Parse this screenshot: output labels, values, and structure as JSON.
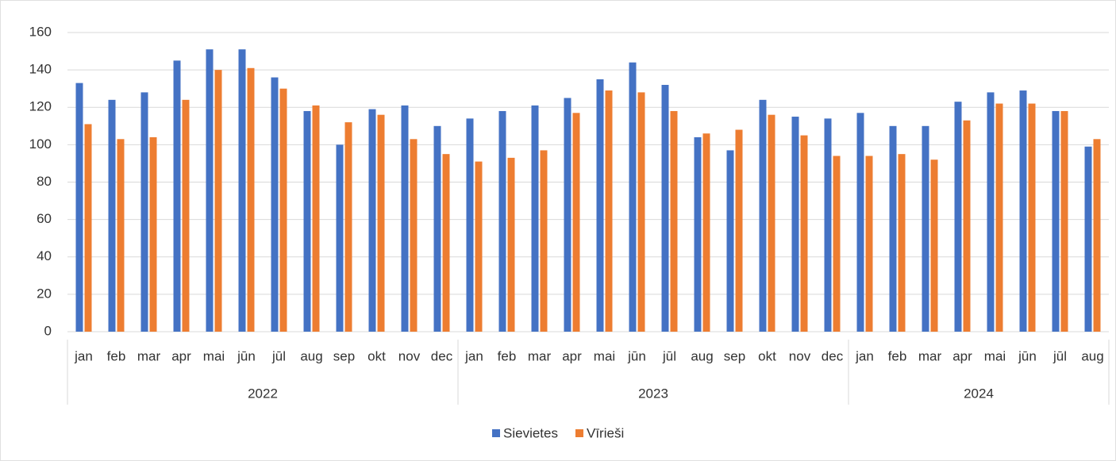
{
  "chart_data": {
    "type": "bar",
    "groups": [
      {
        "label": "2022",
        "categories": [
          "jan",
          "feb",
          "mar",
          "apr",
          "mai",
          "jūn",
          "jūl",
          "aug",
          "sep",
          "okt",
          "nov",
          "dec"
        ]
      },
      {
        "label": "2023",
        "categories": [
          "jan",
          "feb",
          "mar",
          "apr",
          "mai",
          "jūn",
          "jūl",
          "aug",
          "sep",
          "okt",
          "nov",
          "dec"
        ]
      },
      {
        "label": "2024",
        "categories": [
          "jan",
          "feb",
          "mar",
          "apr",
          "mai",
          "jūn",
          "jūl",
          "aug"
        ]
      }
    ],
    "series": [
      {
        "name": "Sievietes",
        "color": "#4472c4",
        "values": [
          133,
          124,
          128,
          145,
          151,
          151,
          136,
          118,
          100,
          119,
          121,
          110,
          114,
          118,
          121,
          125,
          135,
          144,
          132,
          104,
          97,
          124,
          115,
          114,
          117,
          110,
          110,
          123,
          128,
          129,
          118,
          99
        ]
      },
      {
        "name": "Vīrieši",
        "color": "#ed7d31",
        "values": [
          111,
          103,
          104,
          124,
          140,
          141,
          130,
          121,
          112,
          116,
          103,
          95,
          91,
          93,
          97,
          117,
          129,
          128,
          118,
          106,
          108,
          116,
          105,
          94,
          94,
          95,
          92,
          113,
          122,
          122,
          118,
          103
        ]
      }
    ],
    "ylim": [
      0,
      160
    ],
    "yticks": [
      0,
      20,
      40,
      60,
      80,
      100,
      120,
      140,
      160
    ],
    "grid": true,
    "legend": "bottom"
  }
}
